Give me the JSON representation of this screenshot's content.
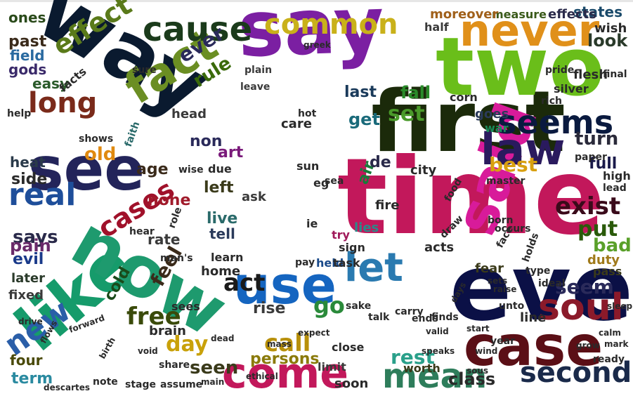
{
  "words": [
    {
      "text": "time",
      "color": "#c2185b"
    },
    {
      "text": "even",
      "color": "#0b1046"
    },
    {
      "text": "first",
      "color": "#1b2a0a"
    },
    {
      "text": "way",
      "color": "#0a1a2f"
    },
    {
      "text": "say",
      "color": "#7b1fa2"
    },
    {
      "text": "two",
      "color": "#6abe1a"
    },
    {
      "text": "like",
      "color": "#169b6b"
    },
    {
      "text": "now",
      "color": "#1e9a6e"
    },
    {
      "text": "see",
      "color": "#23245a"
    },
    {
      "text": "fact",
      "color": "#6b8e23"
    },
    {
      "text": "said",
      "color": "#d81b9a"
    },
    {
      "text": "case",
      "color": "#5b0f16"
    },
    {
      "text": "use",
      "color": "#1565c0"
    },
    {
      "text": "never",
      "color": "#e0901a"
    },
    {
      "text": "come",
      "color": "#c2185b"
    },
    {
      "text": "cause",
      "color": "#1b3b1b"
    },
    {
      "text": "common",
      "color": "#c9b11a"
    },
    {
      "text": "law",
      "color": "#2a1a5e"
    },
    {
      "text": "seems",
      "color": "#0a1a3f"
    },
    {
      "text": "soul",
      "color": "#8b1a2a"
    },
    {
      "text": "real",
      "color": "#1e4e9a"
    },
    {
      "text": "long",
      "color": "#7a2a1a"
    },
    {
      "text": "effect",
      "color": "#5a7a1a"
    },
    {
      "text": "mean",
      "color": "#2e7d5b"
    },
    {
      "text": "second",
      "color": "#1a2a4a"
    },
    {
      "text": "let",
      "color": "#2a7ab0"
    },
    {
      "text": "new",
      "color": "#2a5ea8"
    },
    {
      "text": "cases",
      "color": "#a0112a"
    },
    {
      "text": "exist",
      "color": "#3a0a1a"
    },
    {
      "text": "call",
      "color": "#b8900a"
    },
    {
      "text": "act",
      "color": "#1a1a1a"
    },
    {
      "text": "go",
      "color": "#2a8a3a"
    },
    {
      "text": "free",
      "color": "#3a4a0a"
    },
    {
      "text": "day",
      "color": "#c9a10a"
    },
    {
      "text": "feel",
      "color": "#3a2a1a"
    },
    {
      "text": "rest",
      "color": "#2aa08a"
    },
    {
      "text": "put",
      "color": "#2a5a0a"
    },
    {
      "text": "seem",
      "color": "#2a2a5a"
    },
    {
      "text": "best",
      "color": "#d8a010"
    },
    {
      "text": "set",
      "color": "#4a9a2a"
    },
    {
      "text": "get",
      "color": "#1a6a7a"
    },
    {
      "text": "ever",
      "color": "#2a2a5a"
    },
    {
      "text": "rule",
      "color": "#3a6a0a"
    },
    {
      "text": "old",
      "color": "#e08a10"
    },
    {
      "text": "art",
      "color": "#7a1a7a"
    },
    {
      "text": "says",
      "color": "#2a2a4a"
    },
    {
      "text": "pain",
      "color": "#6a2a6a"
    },
    {
      "text": "evil",
      "color": "#1a3a8a"
    },
    {
      "text": "side",
      "color": "#2a2a2a"
    },
    {
      "text": "heat",
      "color": "#2a3a4a"
    },
    {
      "text": "term",
      "color": "#2a8aa0"
    },
    {
      "text": "four",
      "color": "#4a4a0a"
    },
    {
      "text": "seen",
      "color": "#3a3a1a"
    },
    {
      "text": "persons",
      "color": "#8a7a0a"
    },
    {
      "text": "class",
      "color": "#2a2a2a"
    },
    {
      "text": "bad",
      "color": "#5aa02a"
    },
    {
      "text": "turn",
      "color": "#2a2a3a"
    },
    {
      "text": "full",
      "color": "#1a1a4a"
    },
    {
      "text": "look",
      "color": "#2a3a2a"
    },
    {
      "text": "past",
      "color": "#3a2a1a"
    },
    {
      "text": "ones",
      "color": "#2a4a1a"
    },
    {
      "text": "field",
      "color": "#2a6aa0"
    },
    {
      "text": "gods",
      "color": "#3a2a6a"
    },
    {
      "text": "easy",
      "color": "#2a5a2a"
    },
    {
      "text": "last",
      "color": "#1a3a5a"
    },
    {
      "text": "fall",
      "color": "#2a8a2a"
    },
    {
      "text": "air",
      "color": "#1a7a3a"
    },
    {
      "text": "de",
      "color": "#2a2a4a"
    },
    {
      "text": "non",
      "color": "#2a2a5a"
    },
    {
      "text": "age",
      "color": "#3a2a1a"
    },
    {
      "text": "left",
      "color": "#3a3a1a"
    },
    {
      "text": "live",
      "color": "#2a6a6a"
    },
    {
      "text": "tell",
      "color": "#2a3a5a"
    },
    {
      "text": "ask",
      "color": "#3a3a3a"
    },
    {
      "text": "cold",
      "color": "#1a4a1a"
    },
    {
      "text": "rise",
      "color": "#3a3a3a"
    },
    {
      "text": "brain",
      "color": "#2a2a2a"
    },
    {
      "text": "rate",
      "color": "#3a3a3a"
    },
    {
      "text": "none",
      "color": "#a01a2a"
    },
    {
      "text": "later",
      "color": "#2a3a2a"
    },
    {
      "text": "fixed",
      "color": "#3a3a3a"
    },
    {
      "text": "duty",
      "color": "#a07a1a"
    },
    {
      "text": "states",
      "color": "#1a4a6a"
    },
    {
      "text": "measure",
      "color": "#3a5a1a"
    },
    {
      "text": "effects",
      "color": "#2a2a4a"
    },
    {
      "text": "moreover",
      "color": "#a0601a"
    },
    {
      "text": "wish",
      "color": "#2a2a2a"
    },
    {
      "text": "half",
      "color": "#3a3a3a"
    },
    {
      "text": "soon",
      "color": "#2a2a2a"
    },
    {
      "text": "limit",
      "color": "#3a3a3a"
    },
    {
      "text": "fire",
      "color": "#2a2a2a"
    },
    {
      "text": "city",
      "color": "#2a2a2a"
    },
    {
      "text": "goes",
      "color": "#2a3a5a"
    },
    {
      "text": "war",
      "color": "#1a8a5a"
    },
    {
      "text": "care",
      "color": "#2a2a2a"
    },
    {
      "text": "lies",
      "color": "#2a8a8a"
    },
    {
      "text": "acts",
      "color": "#2a2a2a"
    },
    {
      "text": "fear",
      "color": "#3a3a1a"
    },
    {
      "text": "line",
      "color": "#2a2a2a"
    },
    {
      "text": "sees",
      "color": "#2a2a2a"
    },
    {
      "text": "home",
      "color": "#2a2a2a"
    },
    {
      "text": "held",
      "color": "#1a4a8a"
    },
    {
      "text": "try",
      "color": "#a01a5a"
    },
    {
      "text": "ie",
      "color": "#2a2a2a"
    },
    {
      "text": "sun",
      "color": "#2a2a2a"
    },
    {
      "text": "eg",
      "color": "#2a2a2a"
    },
    {
      "text": "sea",
      "color": "#2a2a2a"
    },
    {
      "text": "high",
      "color": "#2a2a2a"
    },
    {
      "text": "pass",
      "color": "#3a3a1a"
    },
    {
      "text": "head",
      "color": "#3a3a3a"
    },
    {
      "text": "shows",
      "color": "#2a2a2a"
    },
    {
      "text": "faith",
      "color": "#2a6a6a"
    },
    {
      "text": "wise",
      "color": "#2a2a2a"
    },
    {
      "text": "sure",
      "color": "#2a2a2a"
    },
    {
      "text": "plain",
      "color": "#3a3a3a"
    },
    {
      "text": "leave",
      "color": "#3a3a3a"
    },
    {
      "text": "greek",
      "color": "#2a2a2a"
    },
    {
      "text": "facts",
      "color": "#2a2a2a"
    },
    {
      "text": "help",
      "color": "#2a2a2a"
    },
    {
      "text": "note",
      "color": "#2a2a2a"
    },
    {
      "text": "assume",
      "color": "#2a2a2a"
    },
    {
      "text": "stage",
      "color": "#2a2a2a"
    },
    {
      "text": "share",
      "color": "#2a2a2a"
    },
    {
      "text": "worth",
      "color": "#3a3a1a"
    },
    {
      "text": "ready",
      "color": "#2a2a2a"
    },
    {
      "text": "sign",
      "color": "#2a2a2a"
    },
    {
      "text": "task",
      "color": "#2a2a2a"
    },
    {
      "text": "pay",
      "color": "#2a2a2a"
    },
    {
      "text": "learn",
      "color": "#2a2a2a"
    },
    {
      "text": "man's",
      "color": "#2a2a2a"
    },
    {
      "text": "hear",
      "color": "#2a2a2a"
    },
    {
      "text": "role",
      "color": "#2a2a2a"
    },
    {
      "text": "talk",
      "color": "#2a2a2a"
    },
    {
      "text": "close",
      "color": "#2a2a2a"
    },
    {
      "text": "finds",
      "color": "#2a2a2a"
    },
    {
      "text": "year",
      "color": "#2a2a2a"
    },
    {
      "text": "unto",
      "color": "#2a2a2a"
    },
    {
      "text": "ideal",
      "color": "#2a2a2a"
    },
    {
      "text": "occurs",
      "color": "#2a2a2a"
    },
    {
      "text": "holds",
      "color": "#2a2a2a"
    },
    {
      "text": "type",
      "color": "#2a2a2a"
    },
    {
      "text": "due",
      "color": "#2a2a2a"
    },
    {
      "text": "master",
      "color": "#2a2a2a"
    },
    {
      "text": "born",
      "color": "#2a2a2a"
    },
    {
      "text": "face",
      "color": "#2a2a2a"
    },
    {
      "text": "food",
      "color": "#2a2a2a"
    },
    {
      "text": "corn",
      "color": "#2a2a2a"
    },
    {
      "text": "hot",
      "color": "#2a2a2a"
    },
    {
      "text": "silver",
      "color": "#2a2a2a"
    },
    {
      "text": "rich",
      "color": "#2a2a2a"
    },
    {
      "text": "flesh",
      "color": "#2a2a2a"
    },
    {
      "text": "final",
      "color": "#2a2a2a"
    },
    {
      "text": "pride",
      "color": "#2a2a2a"
    },
    {
      "text": "paper",
      "color": "#2a2a2a"
    },
    {
      "text": "lead",
      "color": "#2a2a2a"
    },
    {
      "text": "draw",
      "color": "#2a2a2a"
    },
    {
      "text": "carry",
      "color": "#2a2a2a"
    },
    {
      "text": "sake",
      "color": "#2a2a2a"
    },
    {
      "text": "ends",
      "color": "#2a2a2a"
    },
    {
      "text": "start",
      "color": "#2a2a2a"
    },
    {
      "text": "days",
      "color": "#2a2a2a"
    },
    {
      "text": "mass",
      "color": "#2a2a2a"
    },
    {
      "text": "birth",
      "color": "#2a2a2a"
    },
    {
      "text": "void",
      "color": "#2a2a2a"
    },
    {
      "text": "drive",
      "color": "#2a2a2a"
    },
    {
      "text": "descartes",
      "color": "#2a2a2a"
    },
    {
      "text": "flows",
      "color": "#2a2a2a"
    },
    {
      "text": "forward",
      "color": "#2a2a2a"
    },
    {
      "text": "main",
      "color": "#2a2a2a"
    },
    {
      "text": "dead",
      "color": "#2a2a2a"
    },
    {
      "text": "expect",
      "color": "#2a2a2a"
    },
    {
      "text": "valid",
      "color": "#2a2a2a"
    },
    {
      "text": "wind",
      "color": "#2a2a2a"
    },
    {
      "text": "sets",
      "color": "#2a2a2a"
    },
    {
      "text": "raise",
      "color": "#2a2a2a"
    },
    {
      "text": "calm",
      "color": "#2a2a2a"
    },
    {
      "text": "sleep",
      "color": "#2a2a2a"
    },
    {
      "text": "mark",
      "color": "#2a2a2a"
    },
    {
      "text": "sous",
      "color": "#2a2a2a"
    },
    {
      "text": "speaks",
      "color": "#2a2a2a"
    },
    {
      "text": "ethical",
      "color": "#2a2a2a"
    },
    {
      "text": "grow",
      "color": "#2a2a2a"
    }
  ]
}
